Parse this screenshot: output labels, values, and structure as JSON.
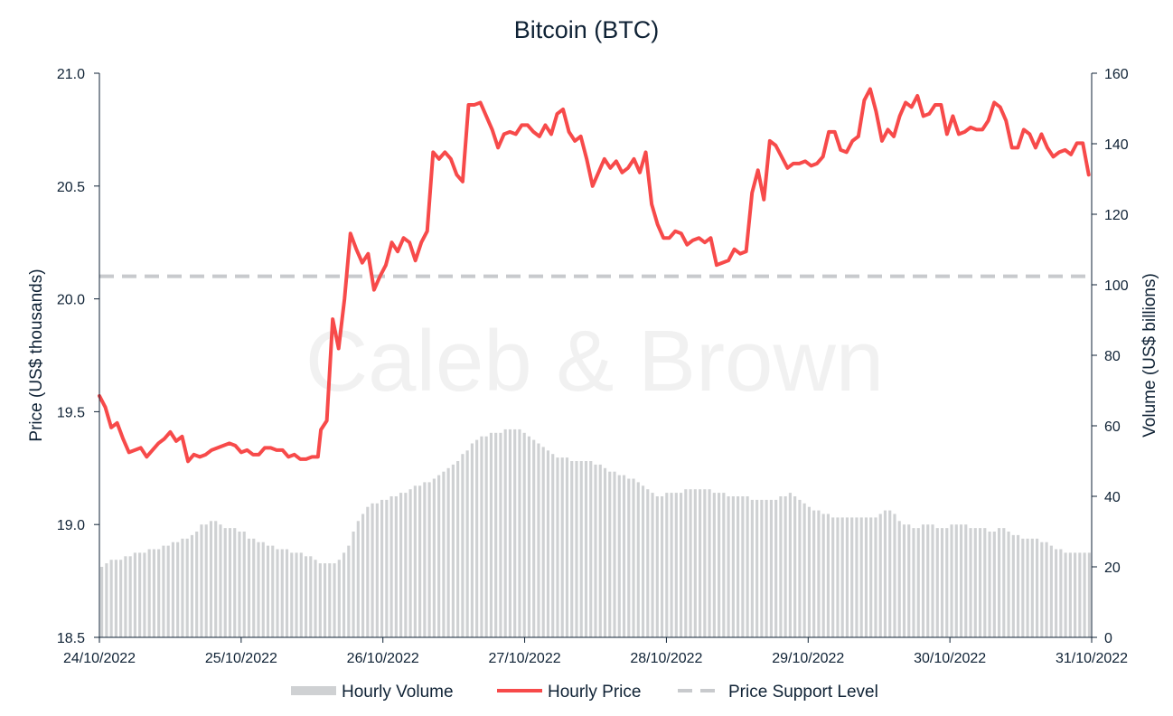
{
  "chart_data": {
    "type": "line",
    "title": "Bitcoin (BTC)",
    "watermark": "Caleb & Brown",
    "ylabel_left": "Price (US$ thousands)",
    "ylabel_right": "Volume (US$ billions)",
    "xlabel": "",
    "ylim_left": [
      18.5,
      21.0
    ],
    "ylim_right": [
      0,
      160
    ],
    "yticks_left": [
      "18.5",
      "19.0",
      "19.5",
      "20.0",
      "20.5",
      "21.0"
    ],
    "yticks_right": [
      "0",
      "20",
      "40",
      "60",
      "80",
      "100",
      "120",
      "140",
      "160"
    ],
    "x_tick_labels": [
      "24/10/2022",
      "25/10/2022",
      "26/10/2022",
      "27/10/2022",
      "28/10/2022",
      "29/10/2022",
      "30/10/2022",
      "31/10/2022"
    ],
    "grid": false,
    "legend_position": "bottom",
    "colors": {
      "volume": "#cfd1d3",
      "price": "#f74a4a",
      "support": "#c8cacd",
      "text": "#0f2235",
      "axis": "#0f2235",
      "watermark": "#f1f1f1"
    },
    "series": [
      {
        "name": "Hourly Price",
        "kind": "line",
        "axis": "left",
        "points": [
          [
            0,
            19.57
          ],
          [
            2,
            19.52
          ],
          [
            4,
            19.43
          ],
          [
            6,
            19.45
          ],
          [
            8,
            19.38
          ],
          [
            10,
            19.32
          ],
          [
            12,
            19.33
          ],
          [
            14,
            19.34
          ],
          [
            16,
            19.3
          ],
          [
            18,
            19.33
          ],
          [
            20,
            19.36
          ],
          [
            22,
            19.38
          ],
          [
            24,
            19.41
          ],
          [
            26,
            19.37
          ],
          [
            28,
            19.39
          ],
          [
            30,
            19.28
          ],
          [
            32,
            19.31
          ],
          [
            34,
            19.3
          ],
          [
            36,
            19.31
          ],
          [
            38,
            19.33
          ],
          [
            40,
            19.34
          ],
          [
            42,
            19.35
          ],
          [
            44,
            19.36
          ],
          [
            46,
            19.35
          ],
          [
            48,
            19.32
          ],
          [
            50,
            19.33
          ],
          [
            52,
            19.31
          ],
          [
            54,
            19.31
          ],
          [
            56,
            19.34
          ],
          [
            58,
            19.34
          ],
          [
            60,
            19.33
          ],
          [
            62,
            19.33
          ],
          [
            64,
            19.3
          ],
          [
            66,
            19.31
          ],
          [
            68,
            19.29
          ],
          [
            70,
            19.29
          ],
          [
            72,
            19.3
          ],
          [
            74,
            19.3
          ],
          [
            75,
            19.42
          ],
          [
            77,
            19.46
          ],
          [
            79,
            19.91
          ],
          [
            81,
            19.78
          ],
          [
            83,
            20.0
          ],
          [
            85,
            20.29
          ],
          [
            87,
            20.22
          ],
          [
            89,
            20.16
          ],
          [
            91,
            20.2
          ],
          [
            93,
            20.04
          ],
          [
            95,
            20.1
          ],
          [
            97,
            20.15
          ],
          [
            99,
            20.25
          ],
          [
            101,
            20.21
          ],
          [
            103,
            20.27
          ],
          [
            105,
            20.25
          ],
          [
            107,
            20.17
          ],
          [
            109,
            20.25
          ],
          [
            111,
            20.3
          ],
          [
            113,
            20.65
          ],
          [
            115,
            20.62
          ],
          [
            117,
            20.65
          ],
          [
            119,
            20.62
          ],
          [
            121,
            20.55
          ],
          [
            123,
            20.52
          ],
          [
            125,
            20.86
          ],
          [
            127,
            20.86
          ],
          [
            129,
            20.87
          ],
          [
            131,
            20.81
          ],
          [
            133,
            20.75
          ],
          [
            135,
            20.67
          ],
          [
            137,
            20.73
          ],
          [
            139,
            20.74
          ],
          [
            141,
            20.73
          ],
          [
            143,
            20.77
          ],
          [
            145,
            20.77
          ],
          [
            147,
            20.74
          ],
          [
            149,
            20.72
          ],
          [
            151,
            20.77
          ],
          [
            153,
            20.73
          ],
          [
            155,
            20.82
          ],
          [
            157,
            20.84
          ],
          [
            159,
            20.74
          ],
          [
            161,
            20.7
          ],
          [
            163,
            20.72
          ],
          [
            165,
            20.62
          ],
          [
            167,
            20.5
          ],
          [
            169,
            20.56
          ],
          [
            171,
            20.62
          ],
          [
            173,
            20.58
          ],
          [
            175,
            20.61
          ],
          [
            177,
            20.56
          ],
          [
            179,
            20.58
          ],
          [
            181,
            20.62
          ],
          [
            183,
            20.56
          ],
          [
            185,
            20.65
          ],
          [
            187,
            20.42
          ],
          [
            189,
            20.33
          ],
          [
            191,
            20.27
          ],
          [
            193,
            20.27
          ],
          [
            195,
            20.3
          ],
          [
            197,
            20.29
          ],
          [
            199,
            20.24
          ],
          [
            201,
            20.26
          ],
          [
            203,
            20.27
          ],
          [
            205,
            20.25
          ],
          [
            207,
            20.27
          ],
          [
            209,
            20.15
          ],
          [
            211,
            20.16
          ],
          [
            213,
            20.17
          ],
          [
            215,
            20.22
          ],
          [
            217,
            20.2
          ],
          [
            219,
            20.21
          ],
          [
            221,
            20.47
          ],
          [
            223,
            20.57
          ],
          [
            225,
            20.44
          ],
          [
            227,
            20.7
          ],
          [
            229,
            20.68
          ],
          [
            231,
            20.63
          ],
          [
            233,
            20.58
          ],
          [
            235,
            20.6
          ],
          [
            237,
            20.6
          ],
          [
            239,
            20.61
          ],
          [
            241,
            20.59
          ],
          [
            243,
            20.6
          ],
          [
            245,
            20.63
          ],
          [
            247,
            20.74
          ],
          [
            249,
            20.74
          ],
          [
            251,
            20.66
          ],
          [
            253,
            20.65
          ],
          [
            255,
            20.7
          ],
          [
            257,
            20.72
          ],
          [
            259,
            20.88
          ],
          [
            261,
            20.93
          ],
          [
            263,
            20.83
          ],
          [
            265,
            20.7
          ],
          [
            267,
            20.75
          ],
          [
            269,
            20.72
          ],
          [
            271,
            20.81
          ],
          [
            273,
            20.87
          ],
          [
            275,
            20.85
          ],
          [
            277,
            20.9
          ],
          [
            279,
            20.81
          ],
          [
            281,
            20.82
          ],
          [
            283,
            20.86
          ],
          [
            285,
            20.86
          ],
          [
            287,
            20.73
          ],
          [
            289,
            20.81
          ],
          [
            291,
            20.73
          ],
          [
            293,
            20.74
          ],
          [
            295,
            20.76
          ],
          [
            297,
            20.75
          ],
          [
            299,
            20.75
          ],
          [
            301,
            20.79
          ],
          [
            303,
            20.87
          ],
          [
            305,
            20.85
          ],
          [
            307,
            20.79
          ],
          [
            309,
            20.67
          ],
          [
            311,
            20.67
          ],
          [
            313,
            20.75
          ],
          [
            315,
            20.73
          ],
          [
            317,
            20.67
          ],
          [
            319,
            20.73
          ],
          [
            321,
            20.67
          ],
          [
            323,
            20.63
          ],
          [
            325,
            20.65
          ],
          [
            327,
            20.66
          ],
          [
            329,
            20.64
          ],
          [
            331,
            20.69
          ],
          [
            333,
            20.69
          ],
          [
            335,
            20.55
          ]
        ]
      },
      {
        "name": "Price Support Level",
        "kind": "dashed",
        "axis": "left",
        "value": 20.1
      },
      {
        "name": "Hourly Volume",
        "kind": "bar",
        "axis": "right",
        "values": [
          20,
          21,
          22,
          22,
          22,
          23,
          23,
          24,
          24,
          24,
          25,
          25,
          25,
          26,
          26,
          27,
          27,
          28,
          28,
          29,
          30,
          32,
          32,
          33,
          33,
          32,
          31,
          31,
          31,
          30,
          30,
          28,
          28,
          27,
          27,
          26,
          26,
          25,
          25,
          25,
          24,
          24,
          24,
          23,
          23,
          22,
          21,
          21,
          21,
          21,
          22,
          24,
          26,
          30,
          33,
          35,
          37,
          38,
          38,
          39,
          39,
          40,
          40,
          41,
          41,
          42,
          43,
          43,
          44,
          44,
          45,
          46,
          47,
          48,
          49,
          50,
          52,
          53,
          55,
          56,
          57,
          57,
          58,
          58,
          58,
          59,
          59,
          59,
          59,
          58,
          57,
          56,
          55,
          54,
          53,
          52,
          51,
          51,
          51,
          50,
          50,
          50,
          50,
          50,
          49,
          49,
          48,
          47,
          47,
          46,
          46,
          45,
          45,
          44,
          43,
          42,
          41,
          40,
          40,
          41,
          41,
          41,
          41,
          42,
          42,
          42,
          42,
          42,
          42,
          41,
          41,
          41,
          40,
          40,
          40,
          40,
          40,
          39,
          39,
          39,
          39,
          39,
          39,
          40,
          40,
          41,
          40,
          39,
          38,
          37,
          36,
          36,
          35,
          35,
          34,
          34,
          34,
          34,
          34,
          34,
          34,
          34,
          34,
          34,
          35,
          36,
          36,
          35,
          33,
          32,
          32,
          31,
          31,
          32,
          32,
          32,
          31,
          31,
          31,
          32,
          32,
          32,
          32,
          31,
          31,
          31,
          31,
          30,
          30,
          31,
          31,
          30,
          29,
          29,
          28,
          28,
          28,
          28,
          27,
          27,
          26,
          25,
          25,
          24,
          24,
          24,
          24,
          24,
          24
        ]
      }
    ],
    "legend": [
      {
        "label": "Hourly Volume",
        "kind": "bar"
      },
      {
        "label": "Hourly Price",
        "kind": "line"
      },
      {
        "label": "Price Support Level",
        "kind": "dashed"
      }
    ]
  }
}
